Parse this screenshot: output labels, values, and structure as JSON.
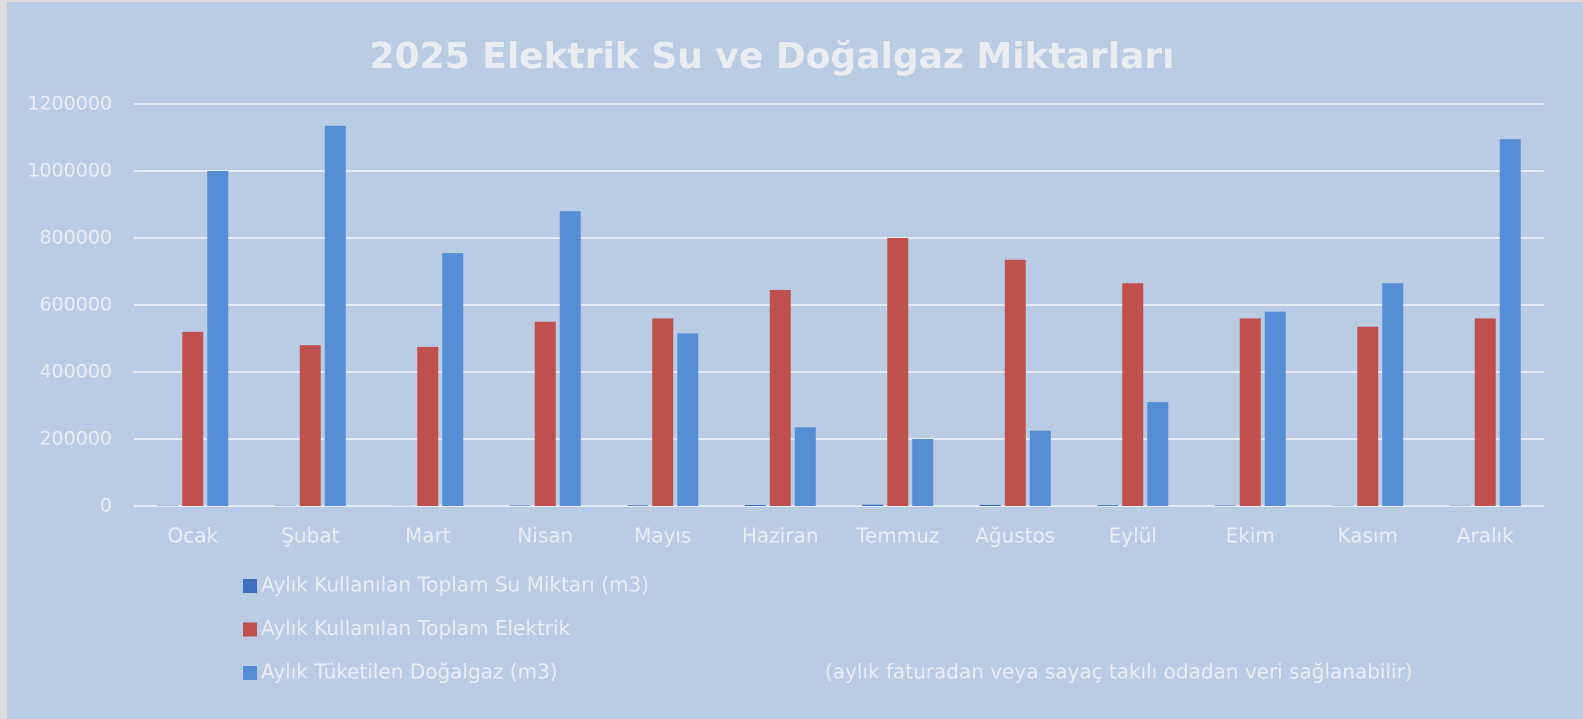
{
  "chart_data": {
    "type": "bar",
    "title": "2025 Elektrik Su ve Doğalgaz Miktarları",
    "annotation": "(aylık faturadan veya sayaç takılı odadan veri sağlanabilir)",
    "categories": [
      "Ocak",
      "Şubat",
      "Mart",
      "Nisan",
      "Mayıs",
      "Haziran",
      "Temmuz",
      "Ağustos",
      "Eylül",
      "Ekim",
      "Kasım",
      "Aralık"
    ],
    "series": [
      {
        "name": "Aylık Kullanılan Toplam Su Miktarı (m3)",
        "color": "#3f6fbf",
        "values": [
          1000,
          1000,
          500,
          1500,
          2000,
          3000,
          4000,
          3500,
          2500,
          1500,
          1000,
          1000
        ]
      },
      {
        "name": "Aylık Kullanılan Toplam Elektrik",
        "color": "#c0504d",
        "values": [
          520000,
          480000,
          475000,
          550000,
          560000,
          645000,
          800000,
          735000,
          665000,
          560000,
          535000,
          560000
        ]
      },
      {
        "name": "Aylık Tüketilen Doğalgaz (m3)",
        "color": "#558ed5",
        "values": [
          1000000,
          1135000,
          755000,
          880000,
          515000,
          235000,
          200000,
          225000,
          310000,
          580000,
          665000,
          1095000
        ]
      }
    ],
    "ylim": [
      0,
      1200000
    ],
    "yticks": [
      0,
      200000,
      400000,
      600000,
      800000,
      1000000,
      1200000
    ],
    "grid": true
  }
}
